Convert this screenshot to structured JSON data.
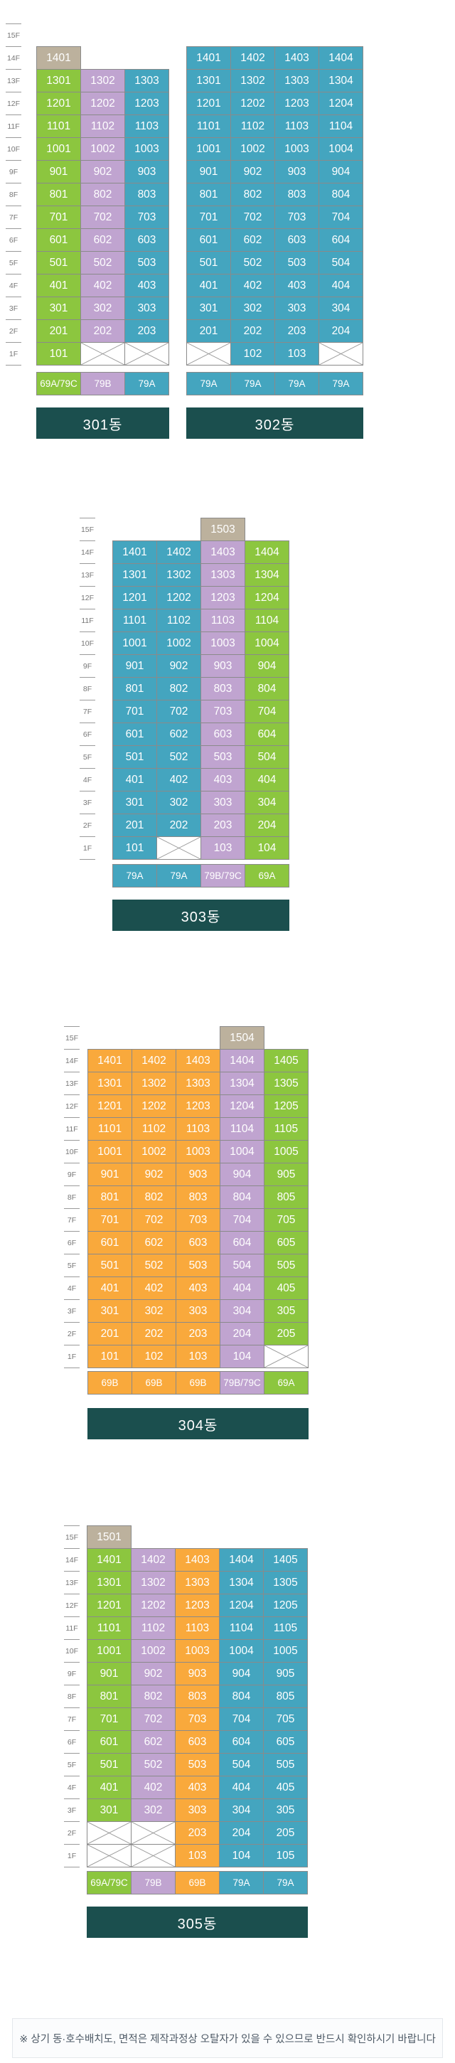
{
  "palette": {
    "green": "#8cc63f",
    "purple": "#c0a4d0",
    "teal": "#44a5bf",
    "orange": "#f9a93c",
    "beige": "#bcb19d",
    "banner": "#1b4f4e",
    "border": "#8a8a8a",
    "x_line": "#999999",
    "tick": "#9a9a9a",
    "floor_label_text": "#777777",
    "unit_text": "#ffffff",
    "footer_text": "#4e5a66",
    "footer_bg": "#fbfcfd",
    "footer_border": "#e4e8eb"
  },
  "floors": [
    "15F",
    "14F",
    "13F",
    "12F",
    "11F",
    "10F",
    "9F",
    "8F",
    "7F",
    "6F",
    "5F",
    "4F",
    "3F",
    "2F",
    "1F"
  ],
  "footer": {
    "note": "※ 상기 동·호수배치도, 면적은 제작과정상 오탈자가 있을 수 있으므로 반드시 확인하시기 바랍니다"
  },
  "sections": [
    {
      "buildings": [
        {
          "name": "301동",
          "col_colors": [
            "green",
            "purple",
            "teal"
          ],
          "rows": [
            {
              "floor": "15F",
              "cells": [
                null,
                null,
                null
              ]
            },
            {
              "floor": "14F",
              "cells": [
                {
                  "t": "1401",
                  "c": "beige"
                },
                null,
                null
              ]
            },
            {
              "floor": "13F",
              "cells": [
                "1301",
                "1302",
                "1303"
              ]
            },
            {
              "floor": "12F",
              "cells": [
                "1201",
                "1202",
                "1203"
              ]
            },
            {
              "floor": "11F",
              "cells": [
                "1101",
                "1102",
                "1103"
              ]
            },
            {
              "floor": "10F",
              "cells": [
                "1001",
                "1002",
                "1003"
              ]
            },
            {
              "floor": "9F",
              "cells": [
                "901",
                "902",
                "903"
              ]
            },
            {
              "floor": "8F",
              "cells": [
                "801",
                "802",
                "803"
              ]
            },
            {
              "floor": "7F",
              "cells": [
                "701",
                "702",
                "703"
              ]
            },
            {
              "floor": "6F",
              "cells": [
                "601",
                "602",
                "603"
              ]
            },
            {
              "floor": "5F",
              "cells": [
                "501",
                "502",
                "503"
              ]
            },
            {
              "floor": "4F",
              "cells": [
                "401",
                "402",
                "403"
              ]
            },
            {
              "floor": "3F",
              "cells": [
                "301",
                "302",
                "303"
              ]
            },
            {
              "floor": "2F",
              "cells": [
                "201",
                "202",
                "203"
              ]
            },
            {
              "floor": "1F",
              "cells": [
                "101",
                "X",
                "X"
              ]
            }
          ],
          "types": [
            {
              "label": "69A/79C",
              "c": "green"
            },
            {
              "label": "79B",
              "c": "purple"
            },
            {
              "label": "79A",
              "c": "teal"
            }
          ]
        },
        {
          "name": "302동",
          "col_colors": [
            "teal",
            "teal",
            "teal",
            "teal"
          ],
          "rows": [
            {
              "floor": "15F",
              "cells": [
                null,
                null,
                null,
                null
              ]
            },
            {
              "floor": "14F",
              "cells": [
                "1401",
                "1402",
                "1403",
                "1404"
              ]
            },
            {
              "floor": "13F",
              "cells": [
                "1301",
                "1302",
                "1303",
                "1304"
              ]
            },
            {
              "floor": "12F",
              "cells": [
                "1201",
                "1202",
                "1203",
                "1204"
              ]
            },
            {
              "floor": "11F",
              "cells": [
                "1101",
                "1102",
                "1103",
                "1104"
              ]
            },
            {
              "floor": "10F",
              "cells": [
                "1001",
                "1002",
                "1003",
                "1004"
              ]
            },
            {
              "floor": "9F",
              "cells": [
                "901",
                "902",
                "903",
                "904"
              ]
            },
            {
              "floor": "8F",
              "cells": [
                "801",
                "802",
                "803",
                "804"
              ]
            },
            {
              "floor": "7F",
              "cells": [
                "701",
                "702",
                "703",
                "704"
              ]
            },
            {
              "floor": "6F",
              "cells": [
                "601",
                "602",
                "603",
                "604"
              ]
            },
            {
              "floor": "5F",
              "cells": [
                "501",
                "502",
                "503",
                "504"
              ]
            },
            {
              "floor": "4F",
              "cells": [
                "401",
                "402",
                "403",
                "404"
              ]
            },
            {
              "floor": "3F",
              "cells": [
                "301",
                "302",
                "303",
                "304"
              ]
            },
            {
              "floor": "2F",
              "cells": [
                "201",
                "202",
                "203",
                "204"
              ]
            },
            {
              "floor": "1F",
              "cells": [
                "X",
                "102",
                "103",
                "X"
              ]
            }
          ],
          "types": [
            {
              "label": "79A",
              "c": "teal"
            },
            {
              "label": "79A",
              "c": "teal"
            },
            {
              "label": "79A",
              "c": "teal"
            },
            {
              "label": "79A",
              "c": "teal"
            }
          ]
        }
      ]
    },
    {
      "buildings": [
        {
          "name": "303동",
          "col_colors": [
            "teal",
            "teal",
            "purple",
            "green"
          ],
          "rows": [
            {
              "floor": "15F",
              "cells": [
                null,
                null,
                {
                  "t": "1503",
                  "c": "beige"
                },
                null
              ]
            },
            {
              "floor": "14F",
              "cells": [
                "1401",
                "1402",
                "1403",
                "1404"
              ]
            },
            {
              "floor": "13F",
              "cells": [
                "1301",
                "1302",
                "1303",
                "1304"
              ]
            },
            {
              "floor": "12F",
              "cells": [
                "1201",
                "1202",
                "1203",
                "1204"
              ]
            },
            {
              "floor": "11F",
              "cells": [
                "1101",
                "1102",
                "1103",
                "1104"
              ]
            },
            {
              "floor": "10F",
              "cells": [
                "1001",
                "1002",
                "1003",
                "1004"
              ]
            },
            {
              "floor": "9F",
              "cells": [
                "901",
                "902",
                "903",
                "904"
              ]
            },
            {
              "floor": "8F",
              "cells": [
                "801",
                "802",
                "803",
                "804"
              ]
            },
            {
              "floor": "7F",
              "cells": [
                "701",
                "702",
                "703",
                "704"
              ]
            },
            {
              "floor": "6F",
              "cells": [
                "601",
                "602",
                "603",
                "604"
              ]
            },
            {
              "floor": "5F",
              "cells": [
                "501",
                "502",
                "503",
                "504"
              ]
            },
            {
              "floor": "4F",
              "cells": [
                "401",
                "402",
                "403",
                "404"
              ]
            },
            {
              "floor": "3F",
              "cells": [
                "301",
                "302",
                "303",
                "304"
              ]
            },
            {
              "floor": "2F",
              "cells": [
                "201",
                "202",
                "203",
                "204"
              ]
            },
            {
              "floor": "1F",
              "cells": [
                "101",
                "X",
                "103",
                "104"
              ]
            }
          ],
          "types": [
            {
              "label": "79A",
              "c": "teal"
            },
            {
              "label": "79A",
              "c": "teal"
            },
            {
              "label": "79B/79C",
              "c": "purple"
            },
            {
              "label": "69A",
              "c": "green"
            }
          ]
        }
      ]
    },
    {
      "buildings": [
        {
          "name": "304동",
          "col_colors": [
            "orange",
            "orange",
            "orange",
            "purple",
            "green"
          ],
          "rows": [
            {
              "floor": "15F",
              "cells": [
                null,
                null,
                null,
                {
                  "t": "1504",
                  "c": "beige"
                },
                null
              ]
            },
            {
              "floor": "14F",
              "cells": [
                "1401",
                "1402",
                "1403",
                "1404",
                "1405"
              ]
            },
            {
              "floor": "13F",
              "cells": [
                "1301",
                "1302",
                "1303",
                "1304",
                "1305"
              ]
            },
            {
              "floor": "12F",
              "cells": [
                "1201",
                "1202",
                "1203",
                "1204",
                "1205"
              ]
            },
            {
              "floor": "11F",
              "cells": [
                "1101",
                "1102",
                "1103",
                "1104",
                "1105"
              ]
            },
            {
              "floor": "10F",
              "cells": [
                "1001",
                "1002",
                "1003",
                "1004",
                "1005"
              ]
            },
            {
              "floor": "9F",
              "cells": [
                "901",
                "902",
                "903",
                "904",
                "905"
              ]
            },
            {
              "floor": "8F",
              "cells": [
                "801",
                "802",
                "803",
                "804",
                "805"
              ]
            },
            {
              "floor": "7F",
              "cells": [
                "701",
                "702",
                "703",
                "704",
                "705"
              ]
            },
            {
              "floor": "6F",
              "cells": [
                "601",
                "602",
                "603",
                "604",
                "605"
              ]
            },
            {
              "floor": "5F",
              "cells": [
                "501",
                "502",
                "503",
                "504",
                "505"
              ]
            },
            {
              "floor": "4F",
              "cells": [
                "401",
                "402",
                "403",
                "404",
                "405"
              ]
            },
            {
              "floor": "3F",
              "cells": [
                "301",
                "302",
                "303",
                "304",
                "305"
              ]
            },
            {
              "floor": "2F",
              "cells": [
                "201",
                "202",
                "203",
                "204",
                "205"
              ]
            },
            {
              "floor": "1F",
              "cells": [
                "101",
                "102",
                "103",
                "104",
                "X"
              ]
            }
          ],
          "types": [
            {
              "label": "69B",
              "c": "orange"
            },
            {
              "label": "69B",
              "c": "orange"
            },
            {
              "label": "69B",
              "c": "orange"
            },
            {
              "label": "79B/79C",
              "c": "purple"
            },
            {
              "label": "69A",
              "c": "green"
            }
          ]
        }
      ]
    },
    {
      "buildings": [
        {
          "name": "305동",
          "col_colors": [
            "green",
            "purple",
            "orange",
            "teal",
            "teal"
          ],
          "rows": [
            {
              "floor": "15F",
              "cells": [
                {
                  "t": "1501",
                  "c": "beige"
                },
                null,
                null,
                null,
                null
              ]
            },
            {
              "floor": "14F",
              "cells": [
                "1401",
                "1402",
                "1403",
                "1404",
                "1405"
              ]
            },
            {
              "floor": "13F",
              "cells": [
                "1301",
                "1302",
                "1303",
                "1304",
                "1305"
              ]
            },
            {
              "floor": "12F",
              "cells": [
                "1201",
                "1202",
                "1203",
                "1204",
                "1205"
              ]
            },
            {
              "floor": "11F",
              "cells": [
                "1101",
                "1102",
                "1103",
                "1104",
                "1105"
              ]
            },
            {
              "floor": "10F",
              "cells": [
                "1001",
                "1002",
                "1003",
                "1004",
                "1005"
              ]
            },
            {
              "floor": "9F",
              "cells": [
                "901",
                "902",
                "903",
                "904",
                "905"
              ]
            },
            {
              "floor": "8F",
              "cells": [
                "801",
                "802",
                "803",
                "804",
                "805"
              ]
            },
            {
              "floor": "7F",
              "cells": [
                "701",
                "702",
                "703",
                "704",
                "705"
              ]
            },
            {
              "floor": "6F",
              "cells": [
                "601",
                "602",
                "603",
                "604",
                "605"
              ]
            },
            {
              "floor": "5F",
              "cells": [
                "501",
                "502",
                "503",
                "504",
                "505"
              ]
            },
            {
              "floor": "4F",
              "cells": [
                "401",
                "402",
                "403",
                "404",
                "405"
              ]
            },
            {
              "floor": "3F",
              "cells": [
                "301",
                "302",
                "303",
                "304",
                "305"
              ]
            },
            {
              "floor": "2F",
              "cells": [
                "X",
                "X",
                "203",
                "204",
                "205"
              ]
            },
            {
              "floor": "1F",
              "cells": [
                "X",
                "X",
                "103",
                "104",
                "105"
              ]
            }
          ],
          "types": [
            {
              "label": "69A/79C",
              "c": "green"
            },
            {
              "label": "79B",
              "c": "purple"
            },
            {
              "label": "69B",
              "c": "orange"
            },
            {
              "label": "79A",
              "c": "teal"
            },
            {
              "label": "79A",
              "c": "teal"
            }
          ]
        }
      ]
    }
  ]
}
